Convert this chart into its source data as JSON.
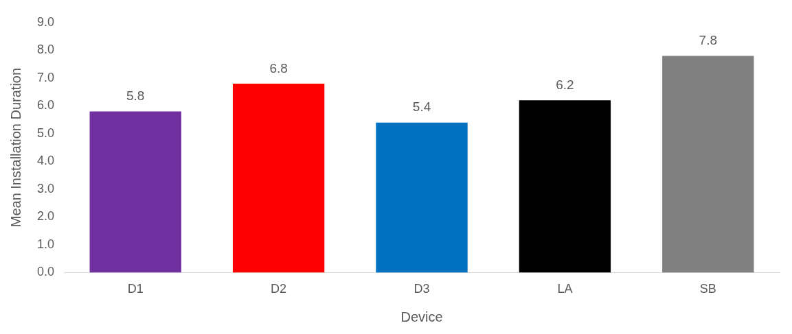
{
  "chart_data": {
    "type": "bar",
    "xlabel": "Device",
    "ylabel": "Mean Installation Duration",
    "categories": [
      "D1",
      "D2",
      "D3",
      "LA",
      "SB"
    ],
    "values": [
      5.8,
      6.8,
      5.4,
      6.2,
      7.8
    ],
    "colors": [
      "#7030a0",
      "#ff0000",
      "#0070c0",
      "#000000",
      "#808080"
    ],
    "ylim": [
      0,
      9
    ],
    "yticks": [
      {
        "value": 0,
        "label": "0.0"
      },
      {
        "value": 1,
        "label": "1.0"
      },
      {
        "value": 2,
        "label": "2.0"
      },
      {
        "value": 3,
        "label": "3.0"
      },
      {
        "value": 4,
        "label": "4.0"
      },
      {
        "value": 5,
        "label": "5.0"
      },
      {
        "value": 6,
        "label": "6.0"
      },
      {
        "value": 7,
        "label": "7.0"
      },
      {
        "value": 8,
        "label": "8.0"
      },
      {
        "value": 9,
        "label": "9.0"
      }
    ],
    "grid": false,
    "legend": false,
    "data_labels": true
  }
}
